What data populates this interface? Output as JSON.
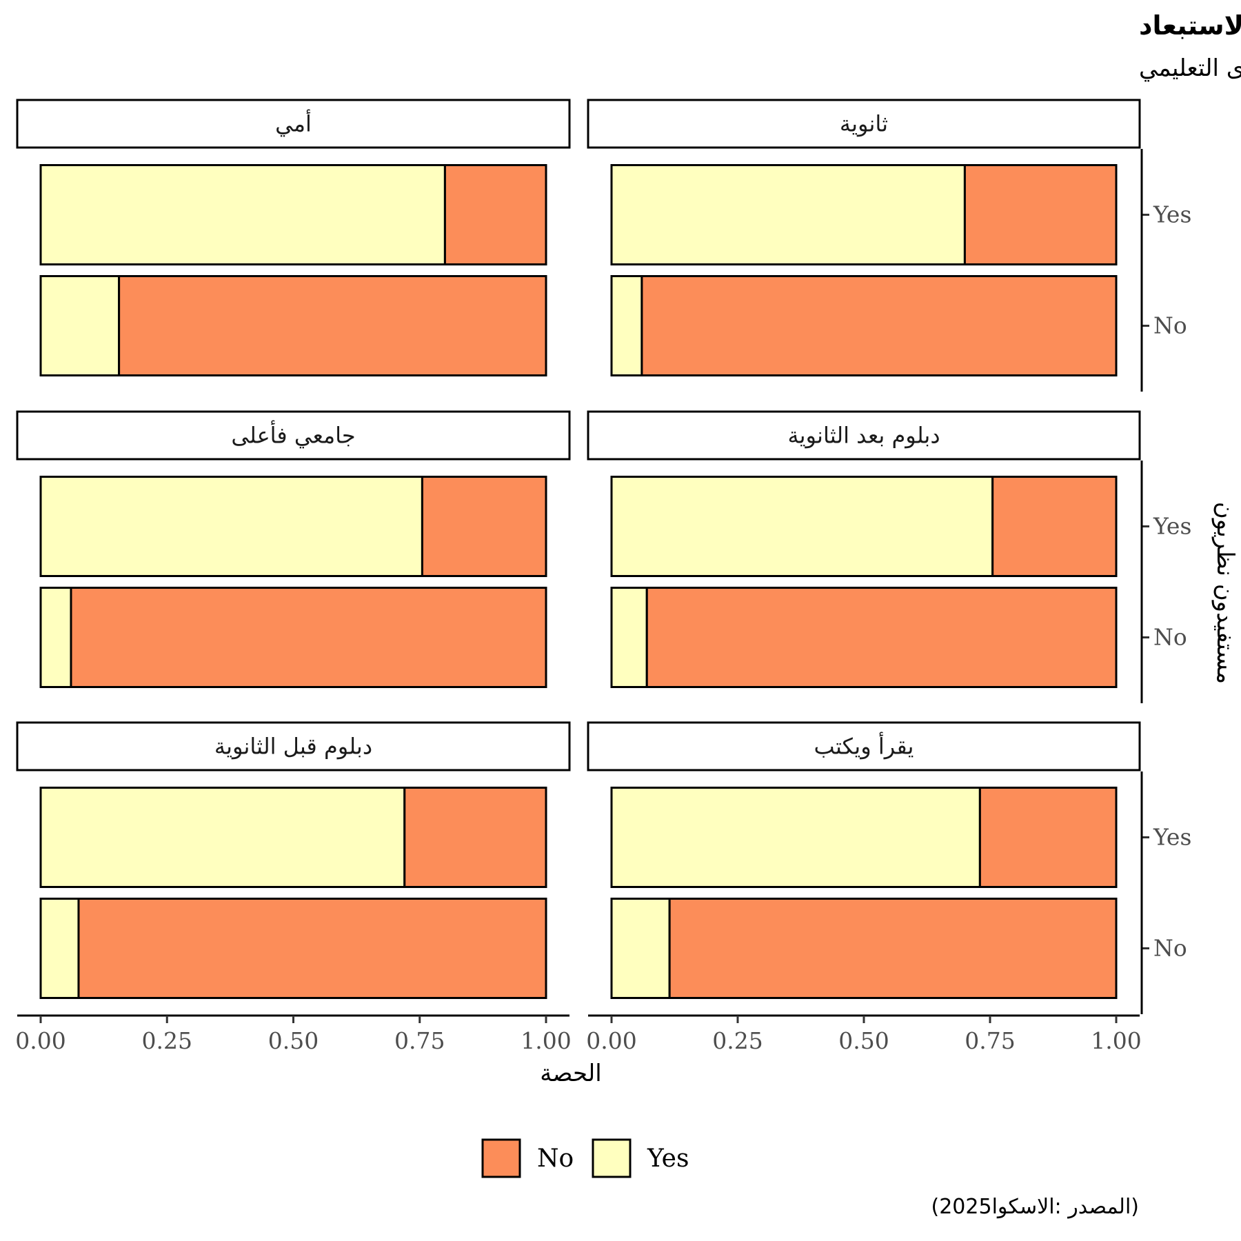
{
  "chart_data": {
    "type": "bar",
    "orientation": "horizontal",
    "stacked": true,
    "title": "أخطاء الشمول/الاستبعاد",
    "subtitle": "بحسب المستوى التعليمي",
    "xlabel": "الحصة",
    "ylabel": "مستفيدون نظريون",
    "caption": "(2025المصدر :الاسكوا)",
    "xlim": [
      0,
      1
    ],
    "x_ticks": [
      "0.00",
      "0.25",
      "0.50",
      "0.75",
      "1.00"
    ],
    "categories": [
      "Yes",
      "No"
    ],
    "legend": {
      "position": "bottom",
      "items": [
        {
          "label": "No",
          "color": "#FC8D59"
        },
        {
          "label": "Yes",
          "color": "#FFFFBF"
        }
      ]
    },
    "colors": {
      "Yes": "#FFFFBF",
      "No": "#FC8D59"
    },
    "grid": false,
    "facets": [
      {
        "label": "ثانوية",
        "bars": [
          {
            "category": "Yes",
            "yes": 0.7,
            "no": 0.3
          },
          {
            "category": "No",
            "yes": 0.06,
            "no": 0.94
          }
        ]
      },
      {
        "label": "أمي",
        "bars": [
          {
            "category": "Yes",
            "yes": 0.8,
            "no": 0.2
          },
          {
            "category": "No",
            "yes": 0.155,
            "no": 0.845
          }
        ]
      },
      {
        "label": "دبلوم بعد الثانوية",
        "bars": [
          {
            "category": "Yes",
            "yes": 0.755,
            "no": 0.245
          },
          {
            "category": "No",
            "yes": 0.07,
            "no": 0.93
          }
        ]
      },
      {
        "label": "جامعي فأعلى",
        "bars": [
          {
            "category": "Yes",
            "yes": 0.755,
            "no": 0.245
          },
          {
            "category": "No",
            "yes": 0.06,
            "no": 0.94
          }
        ]
      },
      {
        "label": "يقرأ ويكتب",
        "bars": [
          {
            "category": "Yes",
            "yes": 0.73,
            "no": 0.27
          },
          {
            "category": "No",
            "yes": 0.115,
            "no": 0.885
          }
        ]
      },
      {
        "label": "دبلوم قبل الثانوية",
        "bars": [
          {
            "category": "Yes",
            "yes": 0.72,
            "no": 0.28
          },
          {
            "category": "No",
            "yes": 0.075,
            "no": 0.925
          }
        ]
      }
    ]
  }
}
